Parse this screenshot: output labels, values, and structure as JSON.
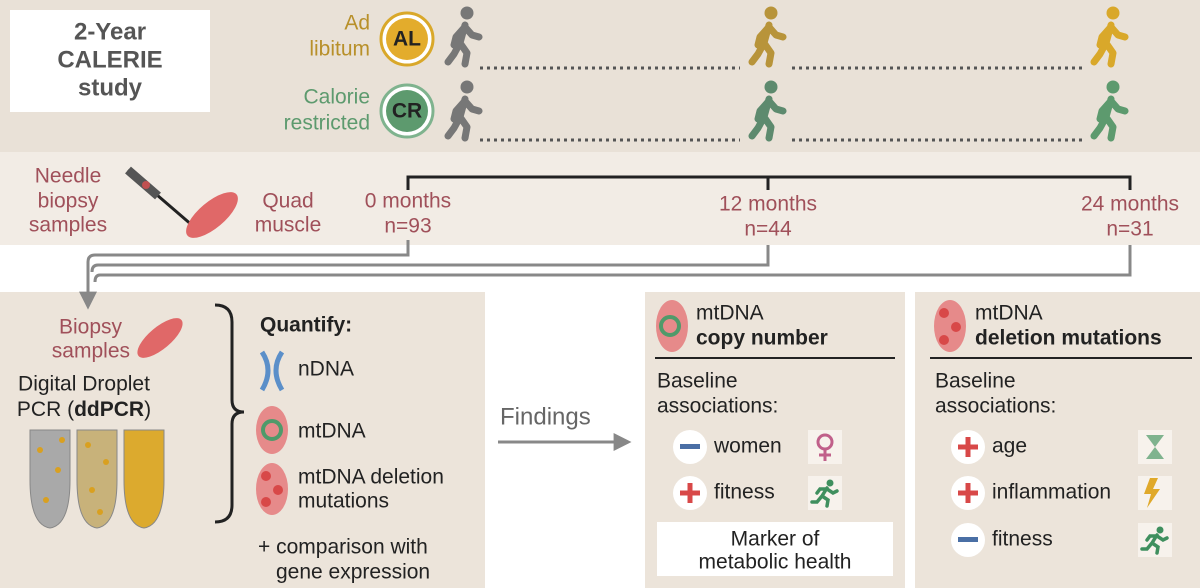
{
  "study": {
    "lines": [
      "2-Year",
      "CALERIE",
      "study"
    ]
  },
  "arms": [
    {
      "label": [
        "Ad",
        "libitum"
      ],
      "badge": "AL"
    },
    {
      "label": [
        "Calorie",
        "restricted"
      ],
      "badge": "CR"
    }
  ],
  "sampling": {
    "needle": [
      "Needle",
      "biopsy",
      "samples"
    ],
    "muscle": [
      "Quad",
      "muscle"
    ]
  },
  "timepoints": [
    {
      "time": "0 months",
      "n": "n=93"
    },
    {
      "time": "12 months",
      "n": "n=44"
    },
    {
      "time": "24 months",
      "n": "n=31"
    }
  ],
  "method": {
    "biopsy": [
      "Biopsy",
      "samples"
    ],
    "assay": "Digital Droplet",
    "assay_line2": [
      "PCR (",
      "ddPCR",
      ")"
    ]
  },
  "quantify": {
    "title": "Quantify:",
    "items": [
      [
        "nDNA"
      ],
      [
        "mtDNA"
      ],
      [
        "mtDNA deletion",
        "mutations"
      ]
    ],
    "note": [
      "+ comparison with",
      "gene expression"
    ]
  },
  "findings": "Findings",
  "panels": [
    {
      "title": [
        "mtDNA",
        "copy number"
      ],
      "baseline": [
        "Baseline",
        "associations:"
      ],
      "associations": [
        "women",
        "fitness"
      ],
      "marker": [
        "Marker of",
        "metabolic health"
      ]
    },
    {
      "title": [
        "mtDNA",
        "deletion mutations"
      ],
      "baseline": [
        "Baseline",
        "associations:"
      ],
      "associations": [
        "age",
        "inflammation",
        "fitness"
      ]
    }
  ]
}
